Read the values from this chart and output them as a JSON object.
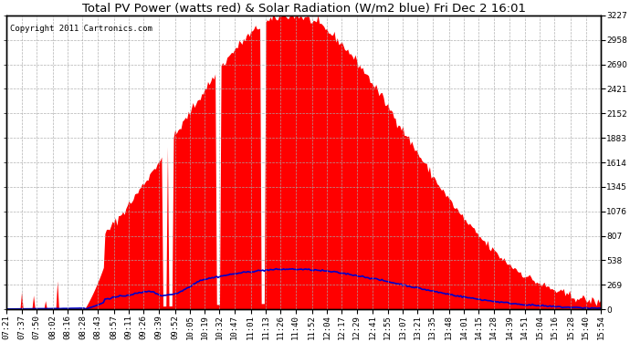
{
  "title": "Total PV Power (watts red) & Solar Radiation (W/m2 blue) Fri Dec 2 16:01",
  "copyright_text": "Copyright 2011 Cartronics.com",
  "yticks": [
    0.0,
    269.0,
    537.9,
    806.9,
    1075.8,
    1344.8,
    1613.7,
    1882.7,
    2151.6,
    2420.6,
    2689.5,
    2958.5,
    3227.4
  ],
  "ymax": 3227.4,
  "ymin": 0.0,
  "pv_color": "#FF0000",
  "solar_color": "#0000CC",
  "bg_color": "#FFFFFF",
  "plot_bg_color": "#FFFFFF",
  "grid_color": "#AAAAAA",
  "border_color": "#000000",
  "title_fontsize": 9.5,
  "tick_fontsize": 6.5,
  "copyright_fontsize": 6.5,
  "time_labels": [
    "07:21",
    "07:37",
    "07:50",
    "08:02",
    "08:16",
    "08:28",
    "08:43",
    "08:57",
    "09:11",
    "09:26",
    "09:39",
    "09:52",
    "10:05",
    "10:19",
    "10:32",
    "10:47",
    "11:01",
    "11:13",
    "11:26",
    "11:40",
    "11:52",
    "12:04",
    "12:17",
    "12:29",
    "12:41",
    "12:55",
    "13:07",
    "13:21",
    "13:35",
    "13:48",
    "14:01",
    "14:15",
    "14:28",
    "14:39",
    "14:51",
    "15:04",
    "15:16",
    "15:28",
    "15:40",
    "15:54"
  ]
}
